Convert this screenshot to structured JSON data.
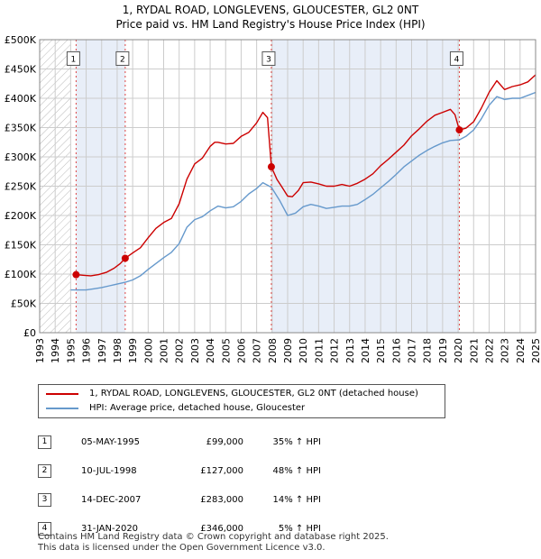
{
  "title_line1": "1, RYDAL ROAD, LONGLEVENS, GLOUCESTER, GL2 0NT",
  "title_line2": "Price paid vs. HM Land Registry's House Price Index (HPI)",
  "colors": {
    "red": "#cc0000",
    "blue": "#6699cc",
    "shade": "#e8eef8",
    "grid": "#cccccc",
    "marker": "#cc0000"
  },
  "chart_data": {
    "type": "line",
    "xlim": [
      1993,
      2025
    ],
    "ylim": [
      0,
      500000
    ],
    "y_ticks": [
      {
        "value": 0,
        "label": "£0"
      },
      {
        "value": 50000,
        "label": "£50K"
      },
      {
        "value": 100000,
        "label": "£100K"
      },
      {
        "value": 150000,
        "label": "£150K"
      },
      {
        "value": 200000,
        "label": "£200K"
      },
      {
        "value": 250000,
        "label": "£250K"
      },
      {
        "value": 300000,
        "label": "£300K"
      },
      {
        "value": 350000,
        "label": "£350K"
      },
      {
        "value": 400000,
        "label": "£400K"
      },
      {
        "value": 450000,
        "label": "£450K"
      },
      {
        "value": 500000,
        "label": "£500K"
      }
    ],
    "x_ticks": [
      "1993",
      "1994",
      "1995",
      "1996",
      "1997",
      "1998",
      "1999",
      "2000",
      "2001",
      "2002",
      "2003",
      "2004",
      "2005",
      "2006",
      "2007",
      "2008",
      "2009",
      "2010",
      "2011",
      "2012",
      "2013",
      "2014",
      "2015",
      "2016",
      "2017",
      "2018",
      "2019",
      "2020",
      "2021",
      "2022",
      "2023",
      "2024",
      "2025"
    ],
    "hatch_before": 1995.0,
    "series": [
      {
        "name": "1, RYDAL ROAD, LONGLEVENS, GLOUCESTER, GL2 0NT (detached house)",
        "color": "#cc0000",
        "points": [
          [
            1995.35,
            99000
          ],
          [
            1995.8,
            98000
          ],
          [
            1996.3,
            97000
          ],
          [
            1996.8,
            99000
          ],
          [
            1997.3,
            103000
          ],
          [
            1997.8,
            110000
          ],
          [
            1998.2,
            118000
          ],
          [
            1998.52,
            127000
          ],
          [
            1999,
            136000
          ],
          [
            1999.5,
            145000
          ],
          [
            2000,
            162000
          ],
          [
            2000.5,
            178000
          ],
          [
            2001,
            188000
          ],
          [
            2001.5,
            195000
          ],
          [
            2002,
            220000
          ],
          [
            2002.5,
            262000
          ],
          [
            2003,
            288000
          ],
          [
            2003.5,
            298000
          ],
          [
            2004,
            318000
          ],
          [
            2004.3,
            325000
          ],
          [
            2004.5,
            325000
          ],
          [
            2005,
            322000
          ],
          [
            2005.5,
            323000
          ],
          [
            2006,
            335000
          ],
          [
            2006.5,
            342000
          ],
          [
            2007,
            358000
          ],
          [
            2007.4,
            376000
          ],
          [
            2007.7,
            367000
          ],
          [
            2007.95,
            283000
          ],
          [
            2008.3,
            262000
          ],
          [
            2008.6,
            250000
          ],
          [
            2009,
            233000
          ],
          [
            2009.3,
            232000
          ],
          [
            2009.7,
            243000
          ],
          [
            2010,
            256000
          ],
          [
            2010.5,
            257000
          ],
          [
            2011,
            254000
          ],
          [
            2011.5,
            250000
          ],
          [
            2012,
            250000
          ],
          [
            2012.5,
            253000
          ],
          [
            2013,
            250000
          ],
          [
            2013.5,
            255000
          ],
          [
            2014,
            262000
          ],
          [
            2014.5,
            271000
          ],
          [
            2015,
            285000
          ],
          [
            2015.5,
            296000
          ],
          [
            2016,
            308000
          ],
          [
            2016.5,
            320000
          ],
          [
            2017,
            336000
          ],
          [
            2017.5,
            348000
          ],
          [
            2018,
            361000
          ],
          [
            2018.5,
            371000
          ],
          [
            2019,
            376000
          ],
          [
            2019.5,
            381000
          ],
          [
            2019.8,
            372000
          ],
          [
            2020.08,
            346000
          ],
          [
            2020.5,
            349000
          ],
          [
            2021,
            360000
          ],
          [
            2021.5,
            383000
          ],
          [
            2022,
            410000
          ],
          [
            2022.5,
            430000
          ],
          [
            2023,
            415000
          ],
          [
            2023.5,
            420000
          ],
          [
            2024,
            423000
          ],
          [
            2024.5,
            428000
          ],
          [
            2025,
            440000
          ]
        ]
      },
      {
        "name": "HPI: Average price, detached house, Gloucester",
        "color": "#6699cc",
        "points": [
          [
            1995,
            73000
          ],
          [
            1995.5,
            73000
          ],
          [
            1996,
            73000
          ],
          [
            1996.5,
            75000
          ],
          [
            1997,
            77000
          ],
          [
            1997.5,
            80000
          ],
          [
            1998,
            83000
          ],
          [
            1998.52,
            86000
          ],
          [
            1999,
            90000
          ],
          [
            1999.5,
            97000
          ],
          [
            2000,
            108000
          ],
          [
            2000.5,
            118000
          ],
          [
            2001,
            128000
          ],
          [
            2001.5,
            137000
          ],
          [
            2002,
            152000
          ],
          [
            2002.5,
            180000
          ],
          [
            2003,
            193000
          ],
          [
            2003.5,
            198000
          ],
          [
            2004,
            208000
          ],
          [
            2004.5,
            216000
          ],
          [
            2005,
            213000
          ],
          [
            2005.5,
            215000
          ],
          [
            2006,
            224000
          ],
          [
            2006.5,
            237000
          ],
          [
            2007,
            246000
          ],
          [
            2007.4,
            256000
          ],
          [
            2007.95,
            248000
          ],
          [
            2008.5,
            225000
          ],
          [
            2009,
            200000
          ],
          [
            2009.5,
            204000
          ],
          [
            2010,
            215000
          ],
          [
            2010.5,
            219000
          ],
          [
            2011,
            216000
          ],
          [
            2011.5,
            212000
          ],
          [
            2012,
            214000
          ],
          [
            2012.5,
            216000
          ],
          [
            2013,
            216000
          ],
          [
            2013.5,
            219000
          ],
          [
            2014,
            227000
          ],
          [
            2014.5,
            236000
          ],
          [
            2015,
            247000
          ],
          [
            2015.5,
            258000
          ],
          [
            2016,
            270000
          ],
          [
            2016.5,
            283000
          ],
          [
            2017,
            293000
          ],
          [
            2017.5,
            303000
          ],
          [
            2018,
            311000
          ],
          [
            2018.5,
            318000
          ],
          [
            2019,
            324000
          ],
          [
            2019.5,
            328000
          ],
          [
            2020.08,
            329000
          ],
          [
            2020.5,
            335000
          ],
          [
            2021,
            346000
          ],
          [
            2021.5,
            365000
          ],
          [
            2022,
            388000
          ],
          [
            2022.5,
            403000
          ],
          [
            2023,
            398000
          ],
          [
            2023.5,
            400000
          ],
          [
            2024,
            400000
          ],
          [
            2024.5,
            405000
          ],
          [
            2025,
            410000
          ]
        ]
      }
    ],
    "sales": [
      {
        "num": "1",
        "year": 1995.35,
        "price": 99000
      },
      {
        "num": "2",
        "year": 1998.52,
        "price": 127000
      },
      {
        "num": "3",
        "year": 2007.95,
        "price": 283000
      },
      {
        "num": "4",
        "year": 2020.08,
        "price": 346000
      }
    ],
    "shaded_spans": [
      [
        1995.35,
        1998.52
      ],
      [
        2007.95,
        2020.08
      ]
    ],
    "marker_box_value": 467000
  },
  "legend": {
    "red_label": "1, RYDAL ROAD, LONGLEVENS, GLOUCESTER, GL2 0NT (detached house)",
    "blue_label": "HPI: Average price, detached house, Gloucester"
  },
  "table": [
    {
      "num": "1",
      "date": "05-MAY-1995",
      "price": "£99,000",
      "hpi": "35% ↑ HPI"
    },
    {
      "num": "2",
      "date": "10-JUL-1998",
      "price": "£127,000",
      "hpi": "48% ↑ HPI"
    },
    {
      "num": "3",
      "date": "14-DEC-2007",
      "price": "£283,000",
      "hpi": "14% ↑ HPI"
    },
    {
      "num": "4",
      "date": "31-JAN-2020",
      "price": "£346,000",
      "hpi": "5% ↑ HPI"
    }
  ],
  "footer": {
    "line1": "Contains HM Land Registry data © Crown copyright and database right 2025.",
    "line2": "This data is licensed under the Open Government Licence v3.0."
  }
}
